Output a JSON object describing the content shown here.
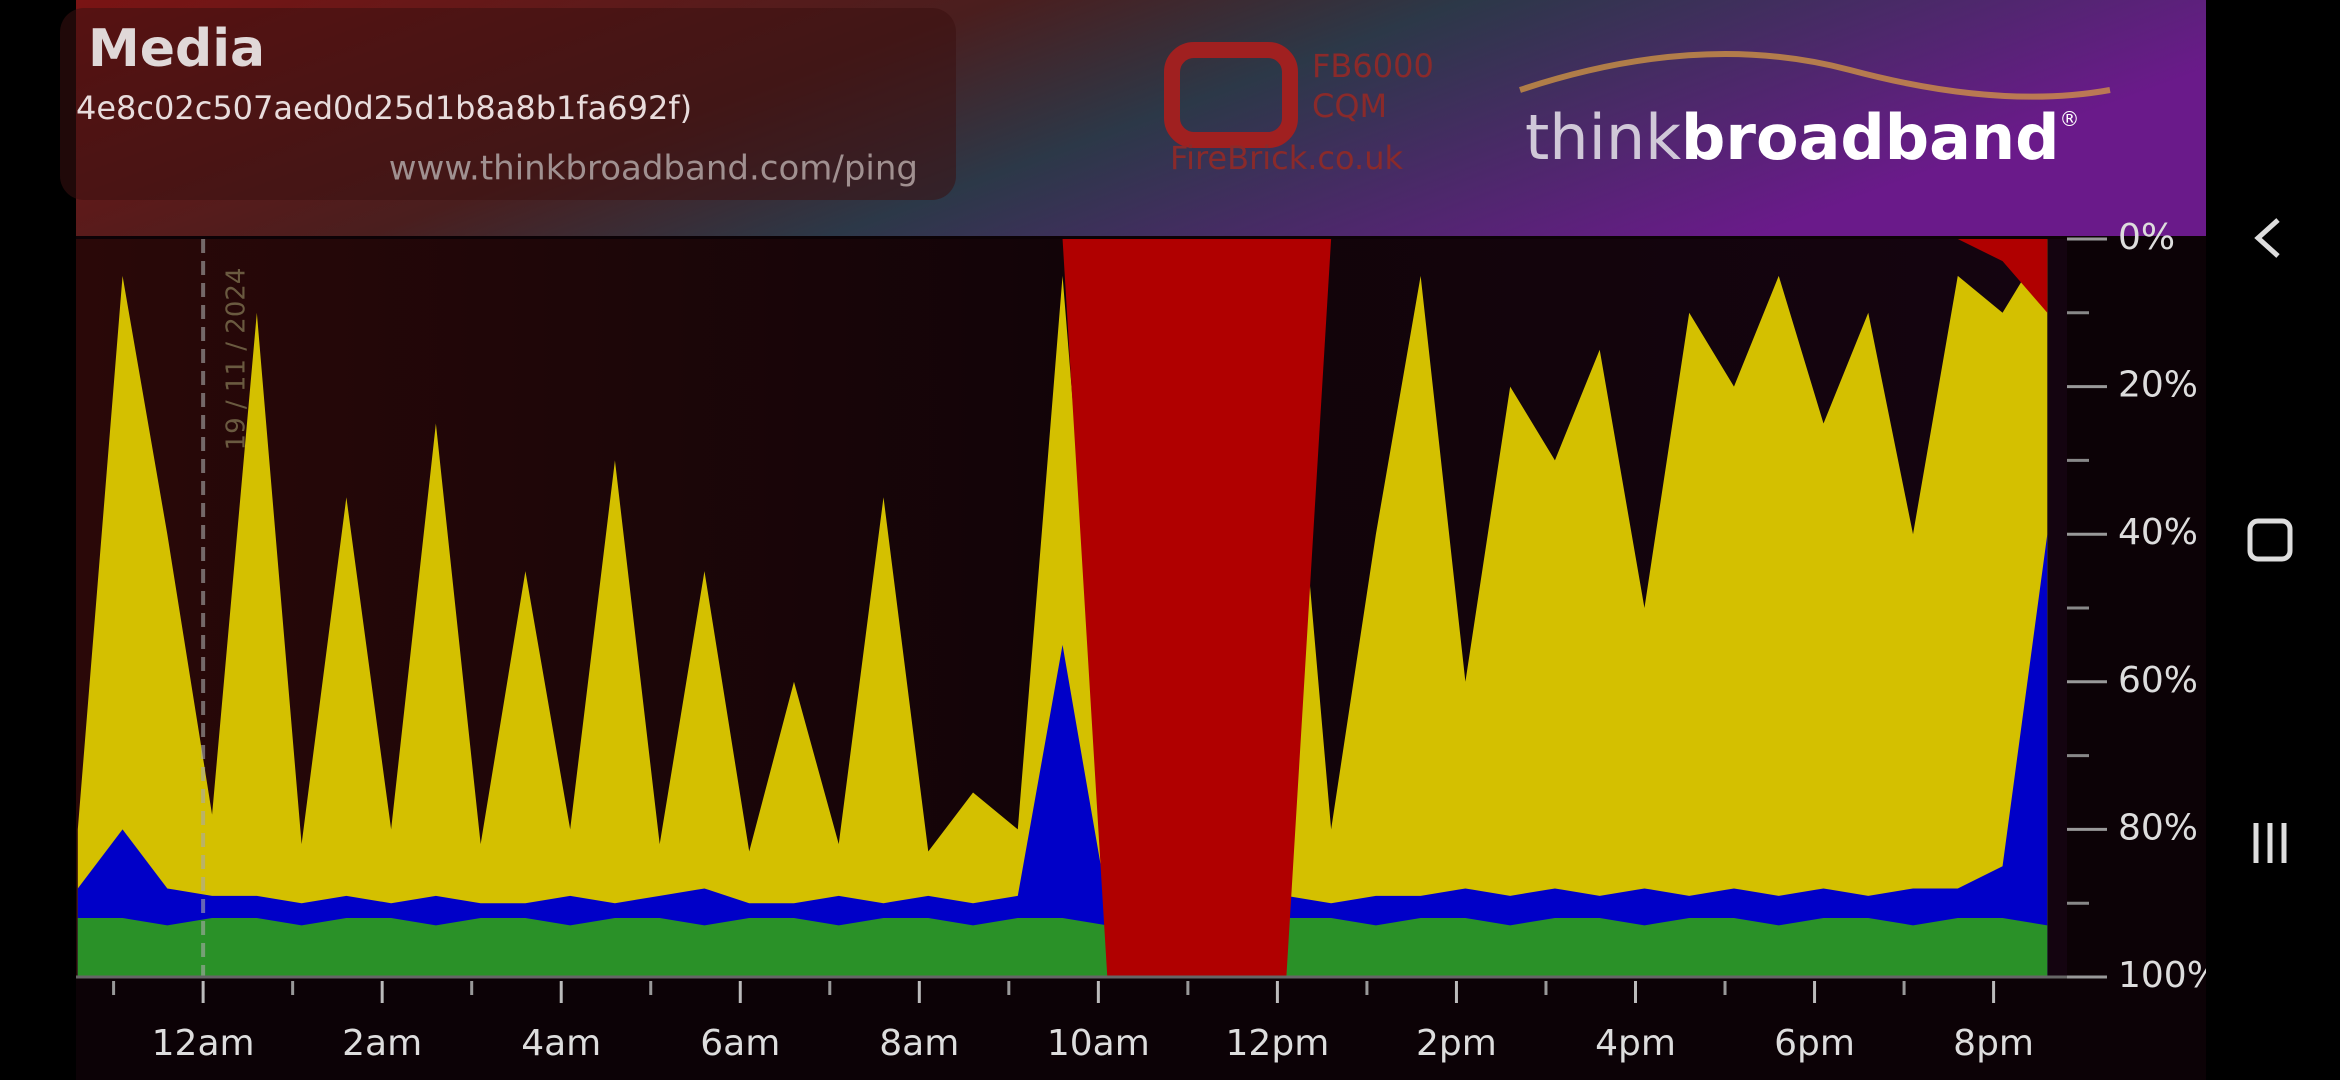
{
  "header": {
    "title": "Media",
    "subtitle": "4e8c02c507aed0d25d1b8a8b1fa692f)",
    "url": "www.thinkbroadband.com/ping",
    "logo_model": "FB6000",
    "logo_product": "CQM",
    "logo_site": "FireBrick.co.uk",
    "brand_light": "think",
    "brand_bold": "broadband",
    "brand_mark": "®"
  },
  "chart_data": {
    "type": "area",
    "date_label": "19 / 11 / 2024",
    "x": [
      -1.4,
      -0.9,
      -0.4,
      0.1,
      0.6,
      1.1,
      1.6,
      2.1,
      2.6,
      3.1,
      3.6,
      4.1,
      4.6,
      5.1,
      5.6,
      6.1,
      6.6,
      7.1,
      7.6,
      8.1,
      8.6,
      9.1,
      9.6,
      10.1,
      10.6,
      11.1,
      11.6,
      12.1,
      12.6,
      13.1,
      13.6,
      14.1,
      14.6,
      15.1,
      15.6,
      16.1,
      16.6,
      17.1,
      17.6,
      18.1,
      18.6,
      19.1,
      19.6,
      20.1,
      20.6
    ],
    "xlim": [
      -1.42,
      20.82
    ],
    "xticks": [
      {
        "value": 0,
        "label": "12am"
      },
      {
        "value": 2,
        "label": "2am"
      },
      {
        "value": 4,
        "label": "4am"
      },
      {
        "value": 6,
        "label": "6am"
      },
      {
        "value": 8,
        "label": "8am"
      },
      {
        "value": 10,
        "label": "10am"
      },
      {
        "value": 12,
        "label": "12pm"
      },
      {
        "value": 14,
        "label": "2pm"
      },
      {
        "value": 16,
        "label": "4pm"
      },
      {
        "value": 18,
        "label": "6pm"
      },
      {
        "value": 20,
        "label": "8pm"
      }
    ],
    "xminor": [
      -1,
      1,
      3,
      5,
      7,
      9,
      11,
      13,
      15,
      17,
      19
    ],
    "ylim": [
      100,
      0
    ],
    "yticks": [
      {
        "value": 0,
        "label": "0%"
      },
      {
        "value": 20,
        "label": "20%"
      },
      {
        "value": 40,
        "label": "40%"
      },
      {
        "value": 60,
        "label": "60%"
      },
      {
        "value": 80,
        "label": "80%"
      },
      {
        "value": 100,
        "label": "100%"
      }
    ],
    "yminor": [
      10,
      30,
      50,
      70,
      90
    ],
    "series": [
      {
        "color": "#d4c000",
        "fill_from": "bottom",
        "values": [
          80,
          5,
          40,
          78,
          10,
          82,
          35,
          80,
          25,
          82,
          45,
          80,
          30,
          82,
          45,
          83,
          60,
          82,
          35,
          83,
          75,
          80,
          5,
          80,
          10,
          20,
          15,
          10,
          80,
          40,
          5,
          60,
          20,
          30,
          15,
          50,
          10,
          20,
          5,
          25,
          10,
          40,
          5,
          10,
          0
        ]
      },
      {
        "color": "#0000c8",
        "fill_from": "bottom",
        "values": [
          88,
          80,
          88,
          89,
          89,
          90,
          89,
          90,
          89,
          90,
          90,
          89,
          90,
          89,
          88,
          90,
          90,
          89,
          90,
          89,
          90,
          89,
          55,
          90,
          89,
          88,
          88,
          89,
          90,
          89,
          89,
          88,
          89,
          88,
          89,
          88,
          89,
          88,
          89,
          88,
          89,
          88,
          88,
          85,
          40
        ]
      },
      {
        "color": "#2a9128",
        "fill_from": "bottom",
        "values": [
          92,
          92,
          93,
          92,
          92,
          93,
          92,
          92,
          93,
          92,
          92,
          93,
          92,
          92,
          93,
          92,
          92,
          93,
          92,
          92,
          93,
          92,
          92,
          93,
          92,
          92,
          93,
          92,
          92,
          93,
          92,
          92,
          93,
          92,
          92,
          93,
          92,
          92,
          93,
          92,
          92,
          93,
          92,
          92,
          93
        ]
      },
      {
        "color": "#b00000",
        "fill_from": "top",
        "values": [
          0,
          0,
          0,
          0,
          0,
          0,
          0,
          0,
          0,
          0,
          0,
          0,
          0,
          0,
          0,
          0,
          0,
          0,
          0,
          0,
          0,
          0,
          0,
          100,
          100,
          100,
          100,
          100,
          0,
          0,
          0,
          0,
          0,
          0,
          0,
          0,
          0,
          0,
          0,
          0,
          0,
          0,
          0,
          3,
          10
        ]
      }
    ]
  }
}
